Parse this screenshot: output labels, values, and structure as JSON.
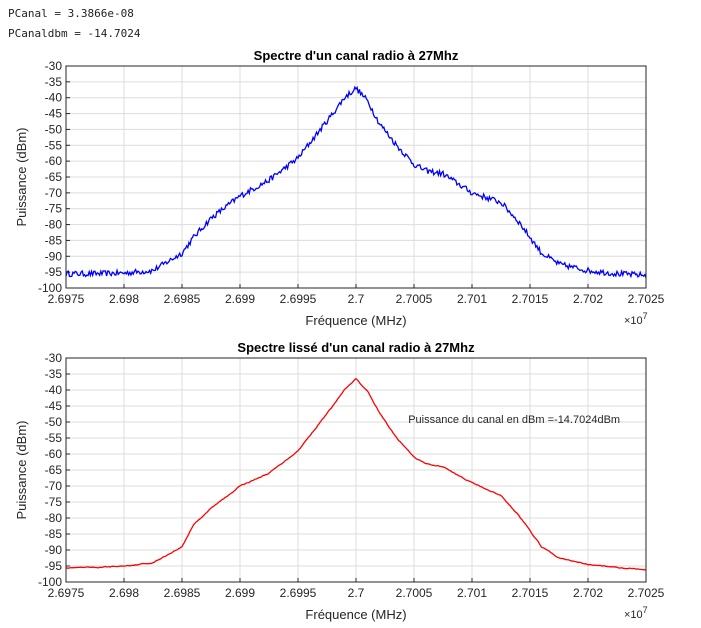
{
  "console": {
    "line1": "PCanal = 3.3866e-08",
    "line2": "PCanaldbm = -14.7024"
  },
  "chart_data": [
    {
      "type": "line",
      "title": "Spectre d'un canal radio à 27Mhz",
      "xlabel": "Fréquence (MHz)",
      "ylabel": "Puissance (dBm)",
      "x_exponent": "7",
      "xlim": [
        2.6975,
        2.7025
      ],
      "ylim": [
        -100,
        -30
      ],
      "xticks": [
        "2.6975",
        "2.698",
        "2.6985",
        "2.699",
        "2.6995",
        "2.7",
        "2.7005",
        "2.701",
        "2.7015",
        "2.702",
        "2.7025"
      ],
      "yticks": [
        "-30",
        "-35",
        "-40",
        "-45",
        "-50",
        "-55",
        "-60",
        "-65",
        "-70",
        "-75",
        "-80",
        "-85",
        "-90",
        "-95",
        "-100"
      ],
      "grid": true,
      "color": "#0000ff",
      "noise": 0.9,
      "series": [
        {
          "x": [
            2.6975,
            2.69775,
            2.698,
            2.69825,
            2.6985,
            2.6986,
            2.69875,
            2.699,
            2.69925,
            2.6995,
            2.69965,
            2.6998,
            2.6999,
            2.7,
            2.7001,
            2.7002,
            2.70035,
            2.7005,
            2.7006,
            2.70075,
            2.701,
            2.70125,
            2.7014,
            2.7016,
            2.70175,
            2.702,
            2.70225,
            2.7025
          ],
          "y": [
            -95.5,
            -95.5,
            -95.3,
            -94.5,
            -89,
            -84,
            -78,
            -71,
            -66,
            -59,
            -52,
            -45,
            -40,
            -37,
            -41,
            -48,
            -55,
            -61,
            -63,
            -64,
            -70,
            -73,
            -79,
            -89,
            -92.5,
            -94.5,
            -95.5,
            -96
          ]
        }
      ]
    },
    {
      "type": "line",
      "title": "Spectre lissé d'un canal radio à 27Mhz",
      "xlabel": "Fréquence (MHz)",
      "ylabel": "Puissance (dBm)",
      "x_exponent": "7",
      "xlim": [
        2.6975,
        2.7025
      ],
      "ylim": [
        -100,
        -30
      ],
      "xticks": [
        "2.6975",
        "2.698",
        "2.6985",
        "2.699",
        "2.6995",
        "2.7",
        "2.7005",
        "2.701",
        "2.7015",
        "2.702",
        "2.7025"
      ],
      "yticks": [
        "-30",
        "-35",
        "-40",
        "-45",
        "-50",
        "-55",
        "-60",
        "-65",
        "-70",
        "-75",
        "-80",
        "-85",
        "-90",
        "-95",
        "-100"
      ],
      "grid": true,
      "color": "#ff0000",
      "noise": 0.3,
      "annotation": "Puissance du canal en dBm =-14.7024dBm",
      "annotation_pos": {
        "x": 2.70045,
        "y": -49
      },
      "series": [
        {
          "x": [
            2.6975,
            2.69775,
            2.698,
            2.69825,
            2.6985,
            2.6986,
            2.69875,
            2.699,
            2.69925,
            2.6995,
            2.69965,
            2.6998,
            2.6999,
            2.7,
            2.7001,
            2.7002,
            2.70035,
            2.7005,
            2.7006,
            2.70075,
            2.701,
            2.70125,
            2.7014,
            2.7016,
            2.70175,
            2.702,
            2.70225,
            2.7025
          ],
          "y": [
            -95.5,
            -95.5,
            -95,
            -94,
            -89,
            -82,
            -77,
            -70,
            -66,
            -59,
            -52,
            -45,
            -40,
            -36.5,
            -40.5,
            -47,
            -55,
            -61,
            -63,
            -64,
            -69,
            -73,
            -79,
            -89,
            -92.5,
            -94.5,
            -95.5,
            -96
          ]
        }
      ]
    }
  ]
}
